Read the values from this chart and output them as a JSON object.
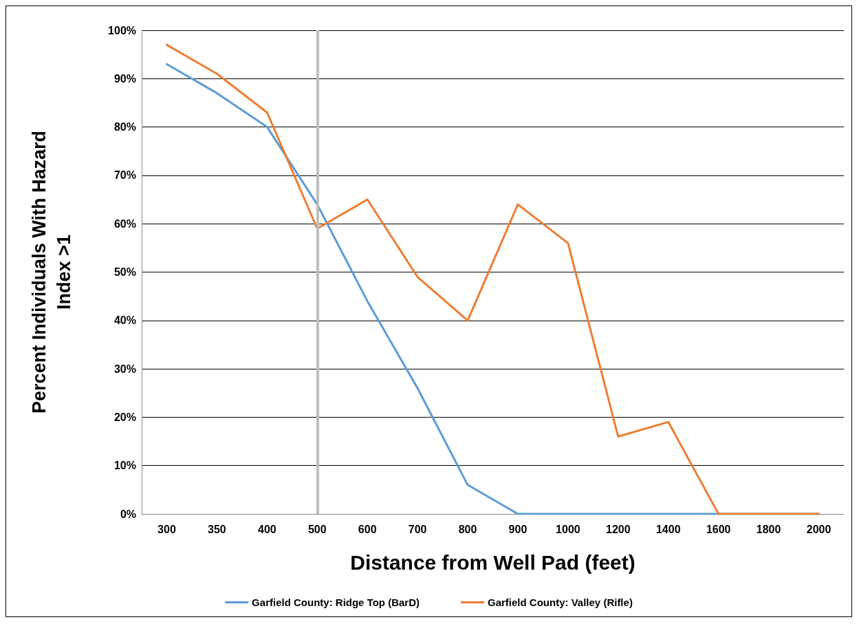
{
  "chart_data": {
    "type": "line",
    "xlabel": "Distance from Well Pad (feet)",
    "ylabel": "Percent Individuals With Hazard\nIndex >1",
    "categories": [
      "300",
      "350",
      "400",
      "500",
      "600",
      "700",
      "800",
      "900",
      "1000",
      "1200",
      "1400",
      "1600",
      "1800",
      "2000"
    ],
    "series": [
      {
        "name": "Garfield County: Ridge Top (BarD)",
        "color": "#5b9bd5",
        "values": [
          93,
          87,
          80,
          64,
          44,
          26,
          6,
          0,
          0,
          0,
          0,
          0,
          0,
          0
        ]
      },
      {
        "name": "Garfield County: Valley (Rifle)",
        "color": "#ed7d31",
        "values": [
          97,
          91,
          83,
          59,
          65,
          49,
          40,
          64,
          56,
          16,
          19,
          0,
          0,
          0
        ]
      }
    ],
    "ylim": [
      0,
      100
    ],
    "yticks": [
      {
        "value": 0,
        "label": "0%"
      },
      {
        "value": 10,
        "label": "10%"
      },
      {
        "value": 20,
        "label": "20%"
      },
      {
        "value": 30,
        "label": "30%"
      },
      {
        "value": 40,
        "label": "40%"
      },
      {
        "value": 50,
        "label": "50%"
      },
      {
        "value": 60,
        "label": "60%"
      },
      {
        "value": 70,
        "label": "70%"
      },
      {
        "value": 80,
        "label": "80%"
      },
      {
        "value": 90,
        "label": "90%"
      },
      {
        "value": 100,
        "label": "100%"
      }
    ],
    "ref_lines": [
      {
        "axis": "x",
        "value": "500",
        "color": "#bfbfbf"
      }
    ],
    "grid": "y",
    "legend": "bottom",
    "marker": "none",
    "line_style": "solid"
  }
}
